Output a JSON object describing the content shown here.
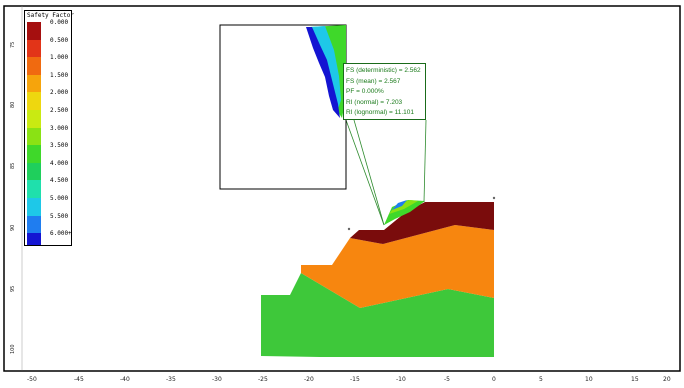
{
  "legend": {
    "title": "Safety Factor",
    "items": [
      {
        "label": "0.000",
        "color": "#a50f0f"
      },
      {
        "label": "0.500",
        "color": "#e23418"
      },
      {
        "label": "1.000",
        "color": "#f06a10"
      },
      {
        "label": "1.500",
        "color": "#f6a40c"
      },
      {
        "label": "2.000",
        "color": "#eed70f"
      },
      {
        "label": "2.500",
        "color": "#c9ea12"
      },
      {
        "label": "3.000",
        "color": "#8ae214"
      },
      {
        "label": "3.500",
        "color": "#3fd82a"
      },
      {
        "label": "4.000",
        "color": "#1fcf5c"
      },
      {
        "label": "4.500",
        "color": "#1fe0ac"
      },
      {
        "label": "5.000",
        "color": "#1ec8e8"
      },
      {
        "label": "5.500",
        "color": "#1f7df0"
      },
      {
        "label": "6.000+",
        "color": "#1414d2"
      }
    ]
  },
  "results": {
    "lines": [
      "FS (deterministic) = 2.562",
      "FS (mean) = 2.567",
      "PF = 0.000%",
      "RI (normal) = 7.203",
      "RI (lognormal) = 11.101"
    ]
  },
  "x_axis": {
    "ticks": [
      "-50",
      "-45",
      "-40",
      "-35",
      "-30",
      "-25",
      "-20",
      "-15",
      "-10",
      "-5",
      "0",
      "5",
      "10",
      "15",
      "20"
    ]
  },
  "y_axis": {
    "ticks": [
      "75",
      "80",
      "85",
      "90",
      "95",
      "100"
    ]
  },
  "materials": {
    "crest": "#7a0c0c",
    "middle": "#f7860f",
    "base": "#3ec83a"
  }
}
